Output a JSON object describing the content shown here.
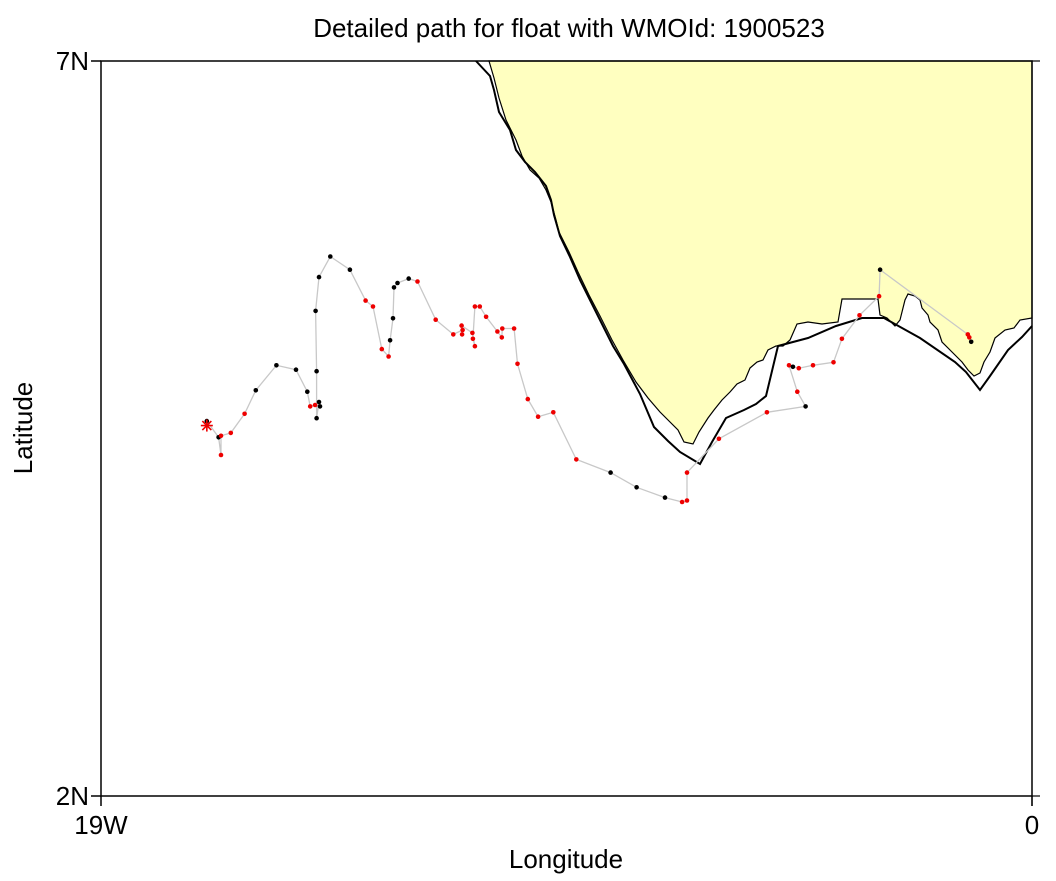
{
  "chart_data": {
    "type": "scatter",
    "title": "Detailed path for float with WMOId: 1900523",
    "xlabel": "Longitude",
    "ylabel": "Latitude",
    "xlim": [
      -19,
      0
    ],
    "ylim": [
      2,
      7
    ],
    "x_ticks": [
      {
        "value": -19,
        "label": "19W"
      },
      {
        "value": 0,
        "label": "0"
      }
    ],
    "y_ticks": [
      {
        "value": 2,
        "label": "2N"
      },
      {
        "value": 7,
        "label": "7N"
      }
    ],
    "grid": false,
    "legend": "none",
    "colors": {
      "land": "#ffffc0",
      "coast": "#000000",
      "path": "#c8c8c8",
      "point_a": "#000000",
      "point_b": "#ee0000",
      "deployment": "#ee0000"
    },
    "deployment": {
      "lon": -16.84,
      "lat": 4.52
    },
    "path": [
      {
        "lon": -16.84,
        "lat": 4.55,
        "c": "a"
      },
      {
        "lon": -16.6,
        "lat": 4.44,
        "c": "a"
      },
      {
        "lon": -16.55,
        "lat": 4.32,
        "c": "b"
      },
      {
        "lon": -16.55,
        "lat": 4.45,
        "c": "b"
      },
      {
        "lon": -16.35,
        "lat": 4.47,
        "c": "b"
      },
      {
        "lon": -16.07,
        "lat": 4.6,
        "c": "b"
      },
      {
        "lon": -15.84,
        "lat": 4.76,
        "c": "a"
      },
      {
        "lon": -15.42,
        "lat": 4.93,
        "c": "a"
      },
      {
        "lon": -15.02,
        "lat": 4.9,
        "c": "a"
      },
      {
        "lon": -14.79,
        "lat": 4.75,
        "c": "a"
      },
      {
        "lon": -14.73,
        "lat": 4.65,
        "c": "b"
      },
      {
        "lon": -14.63,
        "lat": 4.66,
        "c": "b"
      },
      {
        "lon": -14.53,
        "lat": 4.65,
        "c": "a"
      },
      {
        "lon": -14.55,
        "lat": 4.68,
        "c": "a"
      },
      {
        "lon": -14.6,
        "lat": 4.57,
        "c": "a"
      },
      {
        "lon": -14.6,
        "lat": 4.89,
        "c": "a"
      },
      {
        "lon": -14.62,
        "lat": 5.3,
        "c": "a"
      },
      {
        "lon": -14.55,
        "lat": 5.53,
        "c": "a"
      },
      {
        "lon": -14.32,
        "lat": 5.67,
        "c": "a"
      },
      {
        "lon": -13.92,
        "lat": 5.58,
        "c": "a"
      },
      {
        "lon": -13.6,
        "lat": 5.37,
        "c": "b"
      },
      {
        "lon": -13.45,
        "lat": 5.33,
        "c": "b"
      },
      {
        "lon": -13.27,
        "lat": 5.04,
        "c": "b"
      },
      {
        "lon": -13.13,
        "lat": 4.99,
        "c": "b"
      },
      {
        "lon": -13.1,
        "lat": 5.1,
        "c": "a"
      },
      {
        "lon": -13.04,
        "lat": 5.25,
        "c": "a"
      },
      {
        "lon": -13.02,
        "lat": 5.46,
        "c": "a"
      },
      {
        "lon": -12.95,
        "lat": 5.49,
        "c": "a"
      },
      {
        "lon": -12.72,
        "lat": 5.52,
        "c": "a"
      },
      {
        "lon": -12.54,
        "lat": 5.5,
        "c": "b"
      },
      {
        "lon": -12.17,
        "lat": 5.24,
        "c": "b"
      },
      {
        "lon": -11.81,
        "lat": 5.14,
        "c": "b"
      },
      {
        "lon": -11.62,
        "lat": 5.17,
        "c": "b"
      },
      {
        "lon": -11.63,
        "lat": 5.14,
        "c": "b"
      },
      {
        "lon": -11.64,
        "lat": 5.2,
        "c": "b"
      },
      {
        "lon": -11.42,
        "lat": 5.15,
        "c": "b"
      },
      {
        "lon": -11.37,
        "lat": 5.06,
        "c": "b"
      },
      {
        "lon": -11.41,
        "lat": 5.11,
        "c": "b"
      },
      {
        "lon": -11.37,
        "lat": 5.33,
        "c": "b"
      },
      {
        "lon": -11.27,
        "lat": 5.33,
        "c": "b"
      },
      {
        "lon": -11.14,
        "lat": 5.26,
        "c": "b"
      },
      {
        "lon": -10.91,
        "lat": 5.16,
        "c": "b"
      },
      {
        "lon": -10.82,
        "lat": 5.12,
        "c": "b"
      },
      {
        "lon": -10.81,
        "lat": 5.18,
        "c": "b"
      },
      {
        "lon": -10.57,
        "lat": 5.18,
        "c": "b"
      },
      {
        "lon": -10.5,
        "lat": 4.94,
        "c": "b"
      },
      {
        "lon": -10.29,
        "lat": 4.7,
        "c": "b"
      },
      {
        "lon": -10.08,
        "lat": 4.58,
        "c": "b"
      },
      {
        "lon": -9.77,
        "lat": 4.61,
        "c": "b"
      },
      {
        "lon": -9.3,
        "lat": 4.29,
        "c": "b"
      },
      {
        "lon": -8.6,
        "lat": 4.2,
        "c": "a"
      },
      {
        "lon": -8.07,
        "lat": 4.1,
        "c": "a"
      },
      {
        "lon": -7.49,
        "lat": 4.03,
        "c": "a"
      },
      {
        "lon": -7.14,
        "lat": 4.0,
        "c": "b"
      },
      {
        "lon": -7.04,
        "lat": 4.01,
        "c": "b"
      },
      {
        "lon": -7.04,
        "lat": 4.2,
        "c": "b"
      },
      {
        "lon": -6.39,
        "lat": 4.43,
        "c": "b"
      },
      {
        "lon": -5.41,
        "lat": 4.61,
        "c": "b"
      },
      {
        "lon": -4.62,
        "lat": 4.65,
        "c": "a"
      },
      {
        "lon": -4.79,
        "lat": 4.75,
        "c": "b"
      },
      {
        "lon": -4.96,
        "lat": 4.93,
        "c": "b"
      },
      {
        "lon": -4.88,
        "lat": 4.92,
        "c": "a"
      },
      {
        "lon": -4.76,
        "lat": 4.91,
        "c": "b"
      },
      {
        "lon": -4.47,
        "lat": 4.93,
        "c": "b"
      },
      {
        "lon": -4.05,
        "lat": 4.95,
        "c": "b"
      },
      {
        "lon": -3.88,
        "lat": 5.11,
        "c": "b"
      },
      {
        "lon": -3.52,
        "lat": 5.27,
        "c": "b"
      },
      {
        "lon": -3.12,
        "lat": 5.4,
        "c": "b"
      },
      {
        "lon": -3.1,
        "lat": 5.58,
        "c": "a"
      },
      {
        "lon": -1.31,
        "lat": 5.14,
        "c": "b"
      },
      {
        "lon": -1.28,
        "lat": 5.12,
        "c": "b"
      },
      {
        "lon": -1.24,
        "lat": 5.09,
        "c": "a"
      }
    ]
  }
}
